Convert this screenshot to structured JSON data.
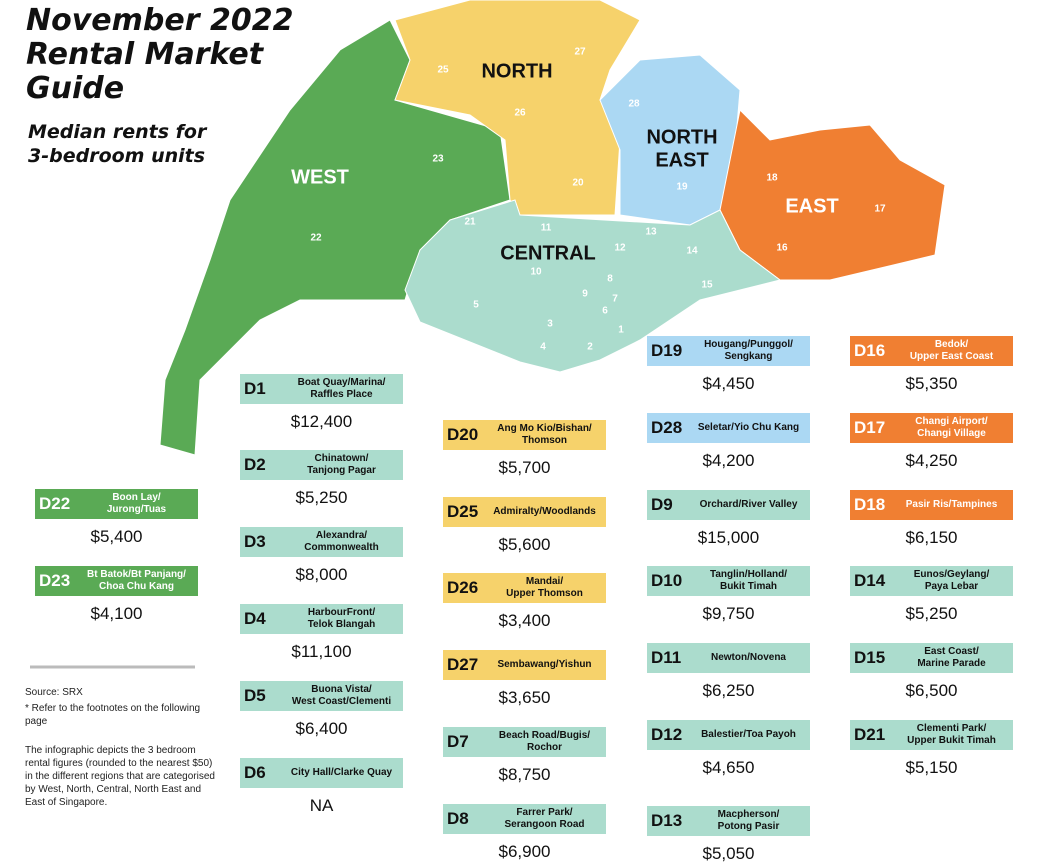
{
  "header": {
    "title": [
      "November 2022",
      "Rental Market",
      "Guide"
    ],
    "subtitle": [
      "Median rents for",
      "3-bedroom units"
    ]
  },
  "map": {
    "regions": [
      {
        "label": [
          "WEST"
        ],
        "color": "#5aaa55"
      },
      {
        "label": [
          "NORTH"
        ],
        "color": "#f6d26b"
      },
      {
        "label": [
          "NORTH",
          "EAST"
        ],
        "color": "#abd8f3"
      },
      {
        "label": [
          "EAST"
        ],
        "color": "#f07f32"
      },
      {
        "label": [
          "CENTRAL"
        ],
        "color": "#abdccd"
      }
    ],
    "district_numbers": [
      "25",
      "27",
      "26",
      "28",
      "23",
      "20",
      "19",
      "18",
      "17",
      "22",
      "21",
      "11",
      "13",
      "12",
      "14",
      "16",
      "10",
      "8",
      "15",
      "9",
      "7",
      "5",
      "6",
      "3",
      "1",
      "4",
      "2"
    ]
  },
  "districts": [
    {
      "code": "D22",
      "name": [
        "Boon Lay/",
        "Jurong/Tuas"
      ],
      "rent": "$5,400",
      "color": "#5aaa55",
      "text_color": "#ffffff"
    },
    {
      "code": "D23",
      "name": [
        "Bt Batok/Bt Panjang/",
        "Choa Chu Kang"
      ],
      "rent": "$4,100",
      "color": "#5aaa55",
      "text_color": "#ffffff"
    },
    {
      "code": "D1",
      "name": [
        "Boat Quay/Marina/",
        "Raffles Place"
      ],
      "rent": "$12,400",
      "color": "#abdccd",
      "text_color": "#111111"
    },
    {
      "code": "D2",
      "name": [
        "Chinatown/",
        "Tanjong Pagar"
      ],
      "rent": "$5,250",
      "color": "#abdccd",
      "text_color": "#111111"
    },
    {
      "code": "D3",
      "name": [
        "Alexandra/",
        "Commonwealth"
      ],
      "rent": "$8,000",
      "color": "#abdccd",
      "text_color": "#111111"
    },
    {
      "code": "D4",
      "name": [
        "HarbourFront/",
        "Telok Blangah"
      ],
      "rent": "$11,100",
      "color": "#abdccd",
      "text_color": "#111111"
    },
    {
      "code": "D5",
      "name": [
        "Buona Vista/",
        "West Coast/Clementi"
      ],
      "rent": "$6,400",
      "color": "#abdccd",
      "text_color": "#111111"
    },
    {
      "code": "D6",
      "name": [
        "City Hall/Clarke Quay"
      ],
      "rent": "NA",
      "color": "#abdccd",
      "text_color": "#111111"
    },
    {
      "code": "D20",
      "name": [
        "Ang Mo Kio/Bishan/",
        "Thomson"
      ],
      "rent": "$5,700",
      "color": "#f6d26b",
      "text_color": "#111111"
    },
    {
      "code": "D25",
      "name": [
        "Admiralty/Woodlands"
      ],
      "rent": "$5,600",
      "color": "#f6d26b",
      "text_color": "#111111"
    },
    {
      "code": "D26",
      "name": [
        "Mandai/",
        "Upper Thomson"
      ],
      "rent": "$3,400",
      "color": "#f6d26b",
      "text_color": "#111111"
    },
    {
      "code": "D27",
      "name": [
        "Sembawang/Yishun"
      ],
      "rent": "$3,650",
      "color": "#f6d26b",
      "text_color": "#111111"
    },
    {
      "code": "D7",
      "name": [
        "Beach Road/Bugis/",
        "Rochor"
      ],
      "rent": "$8,750",
      "color": "#abdccd",
      "text_color": "#111111"
    },
    {
      "code": "D8",
      "name": [
        "Farrer Park/",
        "Serangoon Road"
      ],
      "rent": "$6,900",
      "color": "#abdccd",
      "text_color": "#111111"
    },
    {
      "code": "D19",
      "name": [
        "Hougang/Punggol/",
        "Sengkang"
      ],
      "rent": "$4,450",
      "color": "#abd8f3",
      "text_color": "#111111"
    },
    {
      "code": "D28",
      "name": [
        "Seletar/Yio Chu Kang"
      ],
      "rent": "$4,200",
      "color": "#abd8f3",
      "text_color": "#111111"
    },
    {
      "code": "D9",
      "name": [
        "Orchard/River Valley"
      ],
      "rent": "$15,000",
      "color": "#abdccd",
      "text_color": "#111111"
    },
    {
      "code": "D10",
      "name": [
        "Tanglin/Holland/",
        "Bukit Timah"
      ],
      "rent": "$9,750",
      "color": "#abdccd",
      "text_color": "#111111"
    },
    {
      "code": "D11",
      "name": [
        "Newton/Novena"
      ],
      "rent": "$6,250",
      "color": "#abdccd",
      "text_color": "#111111"
    },
    {
      "code": "D12",
      "name": [
        "Balestier/Toa Payoh"
      ],
      "rent": "$4,650",
      "color": "#abdccd",
      "text_color": "#111111"
    },
    {
      "code": "D13",
      "name": [
        "Macpherson/",
        "Potong Pasir"
      ],
      "rent": "$5,050",
      "color": "#abdccd",
      "text_color": "#111111"
    },
    {
      "code": "D16",
      "name": [
        "Bedok/",
        "Upper East Coast"
      ],
      "rent": "$5,350",
      "color": "#f07f32",
      "text_color": "#ffffff"
    },
    {
      "code": "D17",
      "name": [
        "Changi Airport/",
        "Changi Village"
      ],
      "rent": "$4,250",
      "color": "#f07f32",
      "text_color": "#ffffff"
    },
    {
      "code": "D18",
      "name": [
        "Pasir Ris/Tampines"
      ],
      "rent": "$6,150",
      "color": "#f07f32",
      "text_color": "#ffffff"
    },
    {
      "code": "D14",
      "name": [
        "Eunos/Geylang/",
        "Paya Lebar"
      ],
      "rent": "$5,250",
      "color": "#abdccd",
      "text_color": "#111111"
    },
    {
      "code": "D15",
      "name": [
        "East Coast/",
        "Marine Parade"
      ],
      "rent": "$6,500",
      "color": "#abdccd",
      "text_color": "#111111"
    },
    {
      "code": "D21",
      "name": [
        "Clementi Park/",
        "Upper Bukit Timah"
      ],
      "rent": "$5,150",
      "color": "#abdccd",
      "text_color": "#111111"
    }
  ],
  "notes": {
    "source": "Source: SRX",
    "footnote": "* Refer to the footnotes on the following page",
    "description": "The infographic depicts the 3 bedroom rental figures (rounded to the nearest $50) in the different regions that are categorised by West, North, Central, North East and East of Singapore."
  }
}
